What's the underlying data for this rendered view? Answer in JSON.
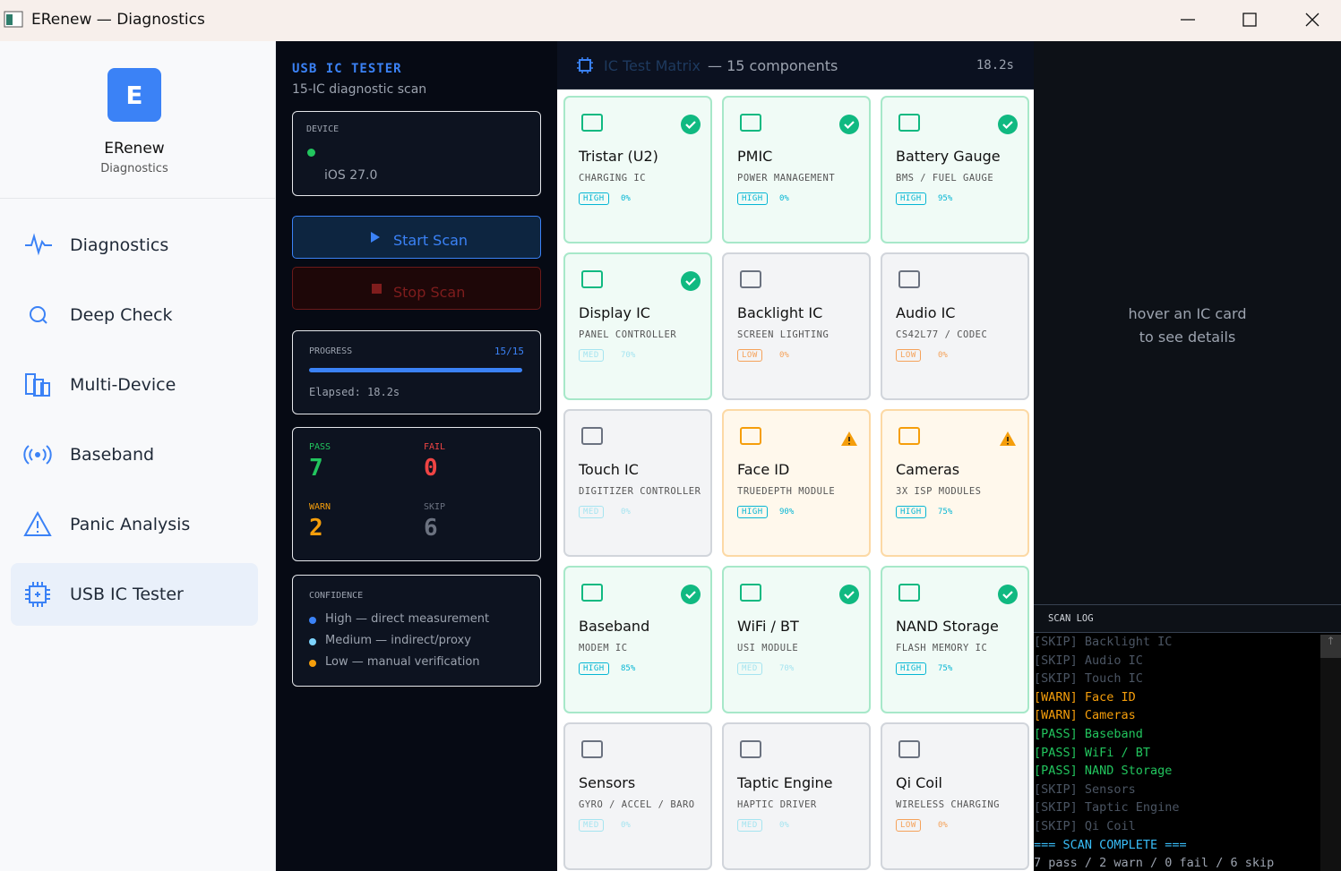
{
  "window": {
    "title": "ERenew — Diagnostics"
  },
  "sidebar": {
    "logo": "E",
    "app_name": "ERenew",
    "app_subtitle": "Diagnostics",
    "nav": [
      "Diagnostics",
      "Deep Check",
      "Multi-Device",
      "Baseband",
      "Panic Analysis",
      "USB IC Tester"
    ]
  },
  "panel": {
    "title": "USB IC TESTER",
    "subtitle": "15-IC diagnostic scan",
    "device_label": "DEVICE",
    "device_os": "iOS 27.0",
    "start": "Start Scan",
    "stop": "Stop Scan",
    "progress_label": "PROGRESS",
    "progress_count": "15/15",
    "elapsed": "Elapsed: 18.2s",
    "stats": [
      {
        "label": "PASS",
        "value": 7,
        "color": "#22c55e"
      },
      {
        "label": "FAIL",
        "value": 0,
        "color": "#ef4444"
      },
      {
        "label": "WARN",
        "value": 2,
        "color": "#f59e0b"
      },
      {
        "label": "SKIP",
        "value": 6,
        "color": "#6b7280"
      }
    ],
    "confidence_label": "CONFIDENCE",
    "confidence": [
      {
        "text": "High — direct measurement",
        "color": "#3b82f6"
      },
      {
        "text": "Medium — indirect/proxy",
        "color": "#7dd3fc"
      },
      {
        "text": "Low — manual verification",
        "color": "#f59e0b"
      }
    ]
  },
  "matrix": {
    "title": "IC Test Matrix",
    "count": "— 15 components",
    "time": "18.2s",
    "cards": [
      {
        "name": "Tristar (U2)",
        "sub": "CHARGING IC",
        "conf": "HIGH",
        "pct": "0%",
        "status": "pass"
      },
      {
        "name": "PMIC",
        "sub": "POWER MANAGEMENT",
        "conf": "HIGH",
        "pct": "0%",
        "status": "pass"
      },
      {
        "name": "Battery Gauge",
        "sub": "BMS / FUEL GAUGE",
        "conf": "HIGH",
        "pct": "95%",
        "status": "pass"
      },
      {
        "name": "Display IC",
        "sub": "PANEL CONTROLLER",
        "conf": "MED",
        "pct": "70%",
        "status": "pass"
      },
      {
        "name": "Backlight IC",
        "sub": "SCREEN LIGHTING",
        "conf": "LOW",
        "pct": "0%",
        "status": "skip"
      },
      {
        "name": "Audio IC",
        "sub": "CS42L77 / CODEC",
        "conf": "LOW",
        "pct": "0%",
        "status": "skip"
      },
      {
        "name": "Touch IC",
        "sub": "DIGITIZER CONTROLLER",
        "conf": "MED",
        "pct": "0%",
        "status": "skip"
      },
      {
        "name": "Face ID",
        "sub": "TRUEDEPTH MODULE",
        "conf": "HIGH",
        "pct": "90%",
        "status": "warn"
      },
      {
        "name": "Cameras",
        "sub": "3X ISP MODULES",
        "conf": "HIGH",
        "pct": "75%",
        "status": "warn"
      },
      {
        "name": "Baseband",
        "sub": "MODEM IC",
        "conf": "HIGH",
        "pct": "85%",
        "status": "pass"
      },
      {
        "name": "WiFi / BT",
        "sub": "USI MODULE",
        "conf": "MED",
        "pct": "70%",
        "status": "pass"
      },
      {
        "name": "NAND Storage",
        "sub": "FLASH MEMORY IC",
        "conf": "HIGH",
        "pct": "75%",
        "status": "pass"
      },
      {
        "name": "Sensors",
        "sub": "GYRO / ACCEL / BARO",
        "conf": "MED",
        "pct": "0%",
        "status": "skip"
      },
      {
        "name": "Taptic Engine",
        "sub": "HAPTIC DRIVER",
        "conf": "MED",
        "pct": "0%",
        "status": "skip"
      },
      {
        "name": "Qi Coil",
        "sub": "WIRELESS CHARGING",
        "conf": "LOW",
        "pct": "0%",
        "status": "skip"
      }
    ]
  },
  "details": {
    "hint": [
      "hover an IC card",
      "to see details"
    ]
  },
  "log": {
    "title": "SCAN LOG",
    "lines": [
      "[SKIP] Backlight IC",
      "[SKIP] Audio IC",
      "[SKIP] Touch IC",
      "[WARN] Face ID",
      "[WARN] Cameras",
      "[PASS] Baseband",
      "[PASS] WiFi / BT",
      "[PASS] NAND Storage",
      "[SKIP] Sensors",
      "[SKIP] Taptic Engine",
      "[SKIP] Qi Coil",
      "=== SCAN COMPLETE ===",
      "7 pass / 2 warn / 0 fail / 6 skip"
    ]
  }
}
